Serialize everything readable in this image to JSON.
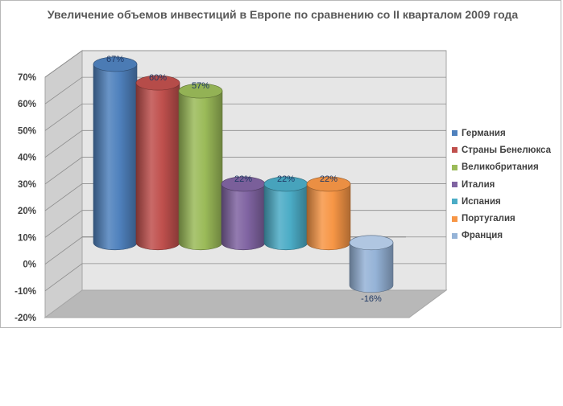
{
  "chart_data": {
    "type": "bar",
    "title": "Увеличение объемов инвестиций в Европе по сравнению со II кварталом 2009 года",
    "categories": [
      "Германия",
      "Страны Бенелюкса",
      "Великобритания",
      "Италия",
      "Испания",
      "Португалия",
      "Франция"
    ],
    "values": [
      67,
      60,
      57,
      22,
      22,
      22,
      -16
    ],
    "value_labels": [
      "67%",
      "60%",
      "57%",
      "22%",
      "22%",
      "22%",
      "-16%"
    ],
    "colors": [
      "#4f81bd",
      "#c0504d",
      "#9bbb59",
      "#8064a2",
      "#4bacc6",
      "#f79646",
      "#95b3d7"
    ],
    "ylim": [
      -20,
      70
    ],
    "yticks": [
      70,
      60,
      50,
      40,
      30,
      20,
      10,
      0,
      -10,
      -20
    ],
    "ytick_labels": [
      "70%",
      "60%",
      "50%",
      "40%",
      "30%",
      "20%",
      "10%",
      "0%",
      "-10%",
      "-20%"
    ],
    "xlabel": "",
    "ylabel": "",
    "grid": true,
    "legend_position": "right",
    "style": "3d-cylinder"
  }
}
